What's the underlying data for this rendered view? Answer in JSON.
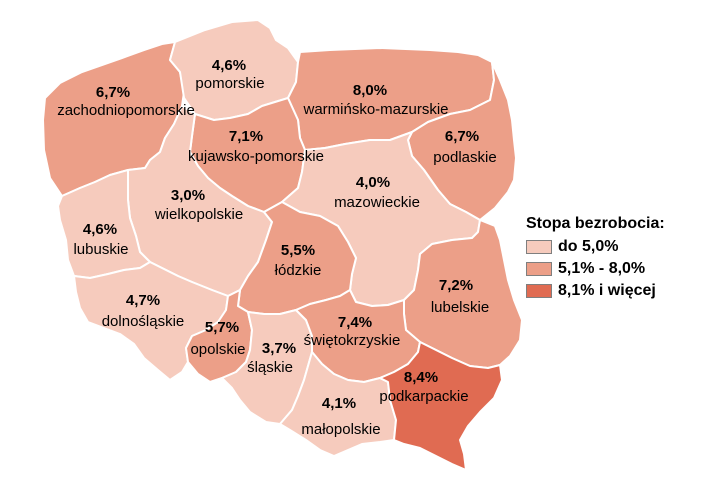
{
  "colors": {
    "low": "#f6cbbd",
    "mid": "#ec9f88",
    "high": "#e06b52",
    "border": "#ffffff"
  },
  "legend": {
    "title": "Stopa bezrobocia:",
    "items": [
      {
        "label": "do 5,0%",
        "class": "low"
      },
      {
        "label": "5,1% - 8,0%",
        "class": "mid"
      },
      {
        "label": "8,1% i więcej",
        "class": "high"
      }
    ]
  },
  "regions": [
    {
      "id": "zachodniopomorskie",
      "name": "zachodniopomorskie",
      "value": "6,7%",
      "class": "mid"
    },
    {
      "id": "pomorskie",
      "name": "pomorskie",
      "value": "4,6%",
      "class": "low"
    },
    {
      "id": "warminsko-mazurskie",
      "name": "warmińsko-mazurskie",
      "value": "8,0%",
      "class": "mid"
    },
    {
      "id": "podlaskie",
      "name": "podlaskie",
      "value": "6,7%",
      "class": "mid"
    },
    {
      "id": "kujawsko-pomorskie",
      "name": "kujawsko-pomorskie",
      "value": "7,1%",
      "class": "mid"
    },
    {
      "id": "wielkopolskie",
      "name": "wielkopolskie",
      "value": "3,0%",
      "class": "low"
    },
    {
      "id": "mazowieckie",
      "name": "mazowieckie",
      "value": "4,0%",
      "class": "low"
    },
    {
      "id": "lubuskie",
      "name": "lubuskie",
      "value": "4,6%",
      "class": "low"
    },
    {
      "id": "lodzkie",
      "name": "łódzkie",
      "value": "5,5%",
      "class": "mid"
    },
    {
      "id": "lubelskie",
      "name": "lubelskie",
      "value": "7,2%",
      "class": "mid"
    },
    {
      "id": "dolnoslaskie",
      "name": "dolnośląskie",
      "value": "4,7%",
      "class": "low"
    },
    {
      "id": "opolskie",
      "name": "opolskie",
      "value": "5,7%",
      "class": "mid"
    },
    {
      "id": "slaskie",
      "name": "śląskie",
      "value": "3,7%",
      "class": "low"
    },
    {
      "id": "swietokrzyskie",
      "name": "świętokrzyskie",
      "value": "7,4%",
      "class": "mid"
    },
    {
      "id": "malopolskie",
      "name": "małopolskie",
      "value": "4,1%",
      "class": "low"
    },
    {
      "id": "podkarpackie",
      "name": "podkarpackie",
      "value": "8,4%",
      "class": "high"
    }
  ]
}
